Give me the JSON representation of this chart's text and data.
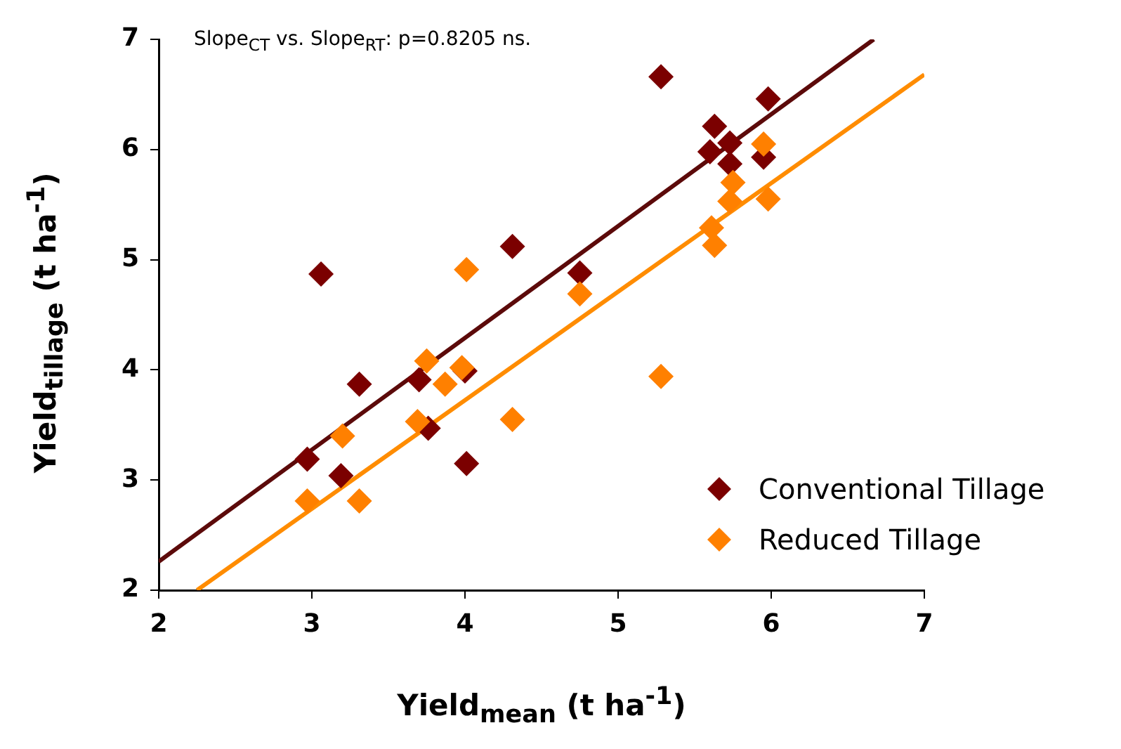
{
  "chart_data": {
    "type": "scatter",
    "xlabel": "Yield$_{mean}$ (t ha$^{-1}$)",
    "ylabel": "Yield$_{tillage}$ (t ha$^{-1}$)",
    "annotations": [
      "Slope$_{CT}$ vs. Slope$_{RT}$: p=0.8205 ns."
    ],
    "xlim": [
      2,
      7
    ],
    "ylim": [
      2,
      7
    ],
    "xticks": [
      2,
      3,
      4,
      5,
      6,
      7
    ],
    "yticks": [
      2,
      3,
      4,
      5,
      6,
      7
    ],
    "legend": "bottom right",
    "series": [
      {
        "name": "Conventional Tillage",
        "color": "#7b0000",
        "marker": "diamond",
        "x": [
          3.06,
          4.31,
          3.31,
          3.7,
          4.0,
          3.76,
          2.97,
          3.19,
          4.01,
          4.75,
          5.28,
          5.98,
          5.63,
          5.6,
          5.73,
          5.73,
          5.95
        ],
        "values": [
          4.87,
          5.12,
          3.87,
          3.91,
          3.99,
          3.47,
          3.19,
          3.04,
          3.15,
          4.88,
          6.66,
          6.46,
          6.21,
          5.98,
          6.06,
          5.87,
          5.93
        ]
      },
      {
        "name": "Reduced Tillage",
        "color": "#ff8000",
        "marker": "diamond",
        "x": [
          4.01,
          3.75,
          3.87,
          3.98,
          3.2,
          3.69,
          4.31,
          2.97,
          3.31,
          4.75,
          5.28,
          5.61,
          5.63,
          5.95,
          5.75,
          5.73,
          5.98
        ],
        "values": [
          4.91,
          4.08,
          3.87,
          4.02,
          3.4,
          3.53,
          3.55,
          2.81,
          2.81,
          4.69,
          3.94,
          5.29,
          5.13,
          6.05,
          5.7,
          5.53,
          5.55
        ]
      },
      {
        "type": "line",
        "color": "#5c0a0a",
        "marker": "none",
        "x": [
          2,
          6.67
        ],
        "values": [
          2.26,
          7
        ]
      },
      {
        "type": "line",
        "color": "#ff8c00",
        "marker": "none",
        "x": [
          2.25,
          7
        ],
        "values": [
          2,
          6.68
        ]
      }
    ]
  }
}
